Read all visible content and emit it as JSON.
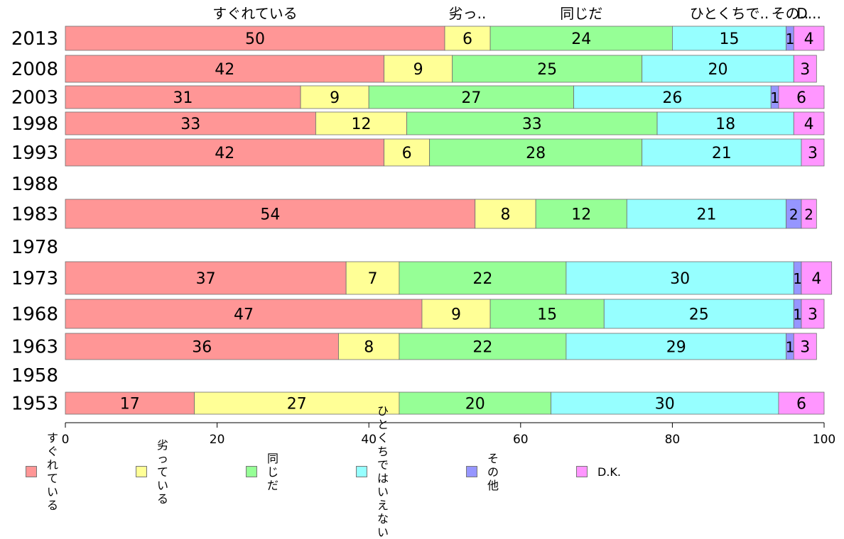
{
  "chart_data": {
    "type": "bar",
    "orientation": "horizontal",
    "stacked": true,
    "xlim": [
      0,
      100
    ],
    "x_ticks": [
      0,
      20,
      40,
      60,
      80,
      100
    ],
    "categories": [
      "2013",
      "2008",
      "2003",
      "1998",
      "1993",
      "1988",
      "1983",
      "1978",
      "1973",
      "1968",
      "1963",
      "1958",
      "1953"
    ],
    "top_labels": [
      "すぐれている",
      "劣っ..",
      "同じだ",
      "ひとくちで..",
      "その..",
      "D..."
    ],
    "series": [
      {
        "name": "すぐれている",
        "color": "#ff9696",
        "values": [
          50,
          42,
          31,
          33,
          42,
          null,
          54,
          null,
          37,
          47,
          36,
          null,
          17
        ]
      },
      {
        "name": "劣っている",
        "color": "#ffff96",
        "values": [
          6,
          9,
          9,
          12,
          6,
          null,
          8,
          null,
          7,
          9,
          8,
          null,
          27
        ]
      },
      {
        "name": "同じだ",
        "color": "#96ff96",
        "values": [
          24,
          25,
          27,
          33,
          28,
          null,
          12,
          null,
          22,
          15,
          22,
          null,
          20
        ]
      },
      {
        "name": "ひとくちではいえない",
        "color": "#96ffff",
        "values": [
          15,
          20,
          26,
          18,
          21,
          null,
          21,
          null,
          30,
          25,
          29,
          null,
          30
        ]
      },
      {
        "name": "その他",
        "color": "#9696ff",
        "values": [
          1,
          0,
          1,
          0,
          0,
          null,
          2,
          null,
          1,
          1,
          1,
          null,
          0
        ]
      },
      {
        "name": "D.K.",
        "color": "#ff96ff",
        "values": [
          4,
          3,
          6,
          4,
          3,
          null,
          2,
          null,
          4,
          3,
          3,
          null,
          6
        ]
      }
    ],
    "legend": [
      {
        "label": "すぐれている",
        "color": "#ff9696"
      },
      {
        "label": "劣っている",
        "color": "#ffff96"
      },
      {
        "label": "同じだ",
        "color": "#96ff96"
      },
      {
        "label": "ひとくちでは いえない",
        "color": "#96ffff"
      },
      {
        "label": "その他",
        "color": "#9696ff"
      },
      {
        "label": "D.K.",
        "color": "#ff96ff"
      }
    ],
    "legend_position": "bottom",
    "grid": false
  }
}
